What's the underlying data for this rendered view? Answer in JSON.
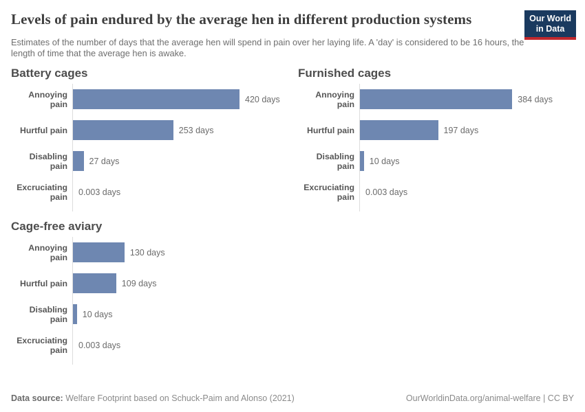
{
  "header": {
    "title": "Levels of pain endured by the average hen in different production systems",
    "subtitle": "Estimates of the number of days that the average hen will spend in pain over her laying life. A 'day' is considered to be 16 hours, the length of time that the average hen is awake.",
    "logo": {
      "line1": "Our World",
      "line2": "in Data"
    }
  },
  "chart_data": {
    "type": "bar",
    "orientation": "horizontal",
    "unit": "days",
    "categories": [
      "Annoying pain",
      "Hurtful pain",
      "Disabling pain",
      "Excruciating pain"
    ],
    "series": [
      {
        "name": "Battery cages",
        "values": [
          420,
          253,
          27,
          0.003
        ],
        "value_labels": [
          "420 days",
          "253 days",
          "27 days",
          "0.003 days"
        ]
      },
      {
        "name": "Furnished cages",
        "values": [
          384,
          197,
          10,
          0.003
        ],
        "value_labels": [
          "384 days",
          "197 days",
          "10 days",
          "0.003 days"
        ]
      },
      {
        "name": "Cage-free aviary",
        "values": [
          130,
          109,
          10,
          0.003
        ],
        "value_labels": [
          "130 days",
          "109 days",
          "10 days",
          "0.003 days"
        ]
      }
    ],
    "xmax": 420,
    "grid": false,
    "legend": "none",
    "colors": {
      "bar": "#6e87b1",
      "axis": "#dcdcdc",
      "logo_background": "#1a3a5f",
      "logo_stripe": "#c0282d"
    }
  },
  "footer": {
    "source_label": "Data source:",
    "source_text": " Welfare Footprint based on Schuck-Paim and Alonso (2021)",
    "link_text": "OurWorldinData.org/animal-welfare | CC BY"
  }
}
